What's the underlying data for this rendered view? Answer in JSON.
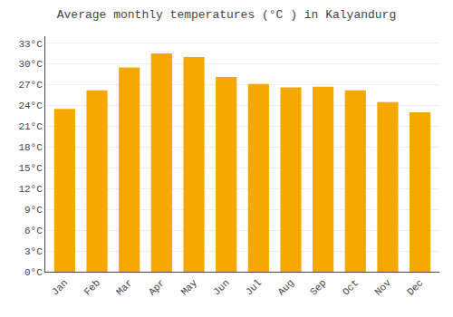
{
  "chart_data": {
    "type": "bar",
    "title": "Average monthly temperatures (°C ) in Kalyandurg",
    "categories": [
      "Jan",
      "Feb",
      "Mar",
      "Apr",
      "May",
      "Jun",
      "Jul",
      "Aug",
      "Sep",
      "Oct",
      "Nov",
      "Dec"
    ],
    "values": [
      23.5,
      26.2,
      29.5,
      31.5,
      31.0,
      28.1,
      27.1,
      26.6,
      26.7,
      26.2,
      24.5,
      23.0
    ],
    "color": "#F5A800",
    "ylim": [
      0,
      34
    ],
    "yticks": [
      {
        "value": 0,
        "label": "0°C"
      },
      {
        "value": 3,
        "label": "3°C"
      },
      {
        "value": 6,
        "label": "6°C"
      },
      {
        "value": 9,
        "label": "9°C"
      },
      {
        "value": 12,
        "label": "12°C"
      },
      {
        "value": 15,
        "label": "15°C"
      },
      {
        "value": 18,
        "label": "18°C"
      },
      {
        "value": 21,
        "label": "21°C"
      },
      {
        "value": 24,
        "label": "24°C"
      },
      {
        "value": 27,
        "label": "27°C"
      },
      {
        "value": 30,
        "label": "30°C"
      },
      {
        "value": 33,
        "label": "33°C"
      }
    ],
    "grid": true
  }
}
